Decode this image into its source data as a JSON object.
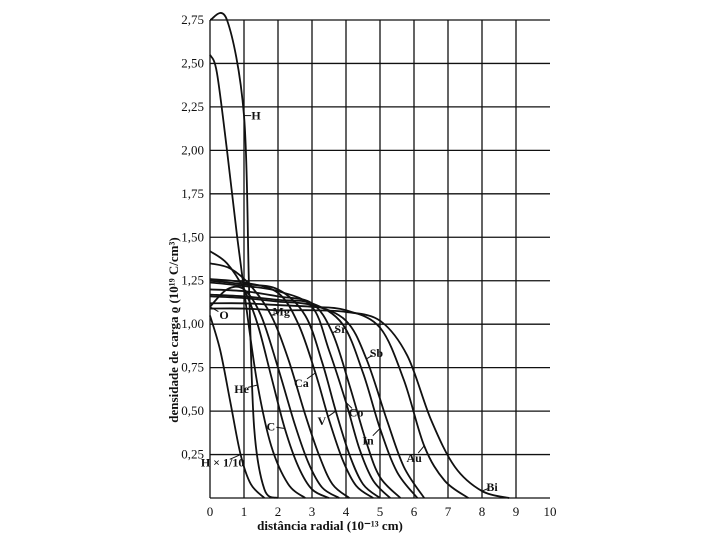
{
  "chart_data": {
    "type": "line",
    "title": "",
    "xlabel": "distância radial (10⁻¹³ cm)",
    "ylabel": "densidade de carga ϱ (10¹⁹ C/cm³)",
    "xlim": [
      0,
      10
    ],
    "ylim": [
      0,
      2.75
    ],
    "grid": true,
    "x_ticks": [
      "0",
      "1",
      "2",
      "3",
      "4",
      "5",
      "6",
      "7",
      "8",
      "9",
      "10"
    ],
    "y_ticks": [
      "0,25",
      "0,50",
      "0,75",
      "1,00",
      "1,25",
      "1,50",
      "1,75",
      "2,00",
      "2,25",
      "2,50",
      "2,75"
    ],
    "series": [
      {
        "name": "H",
        "x": [
          0,
          0.5,
          1.0,
          1.15,
          1.3,
          1.6,
          2.0
        ],
        "y": [
          2.75,
          2.75,
          2.2,
          1.2,
          0.4,
          0.05,
          0
        ]
      },
      {
        "name": "H × 1/10",
        "x": [
          0,
          0.3,
          0.6,
          0.9,
          1.2,
          1.6
        ],
        "y": [
          1.05,
          0.85,
          0.55,
          0.25,
          0.08,
          0
        ]
      },
      {
        "name": "He",
        "x": [
          0,
          0.2,
          0.5,
          0.8,
          1.1,
          1.4,
          1.8,
          2.3,
          2.8
        ],
        "y": [
          2.55,
          2.45,
          2.0,
          1.5,
          1.05,
          0.65,
          0.3,
          0.08,
          0
        ]
      },
      {
        "name": "C",
        "x": [
          0,
          0.5,
          1.0,
          1.4,
          1.8,
          2.2,
          2.6,
          3.0,
          3.5
        ],
        "y": [
          1.42,
          1.35,
          1.2,
          1.0,
          0.7,
          0.4,
          0.18,
          0.05,
          0
        ]
      },
      {
        "name": "O",
        "x": [
          0,
          0.5,
          1.0,
          1.5,
          2.0,
          2.5,
          2.9,
          3.3,
          3.8
        ],
        "y": [
          1.1,
          1.2,
          1.2,
          1.05,
          0.75,
          0.42,
          0.2,
          0.06,
          0
        ]
      },
      {
        "name": "Mg",
        "x": [
          0,
          0.6,
          1.2,
          1.8,
          2.3,
          2.8,
          3.2,
          3.6,
          4.1
        ],
        "y": [
          1.35,
          1.32,
          1.22,
          1.05,
          0.8,
          0.48,
          0.25,
          0.08,
          0
        ]
      },
      {
        "name": "Ca",
        "x": [
          0,
          1.0,
          2.0,
          2.6,
          3.1,
          3.5,
          3.9,
          4.3,
          4.8
        ],
        "y": [
          1.26,
          1.24,
          1.18,
          1.0,
          0.72,
          0.45,
          0.22,
          0.07,
          0
        ]
      },
      {
        "name": "V",
        "x": [
          0,
          1.0,
          2.0,
          2.8,
          3.3,
          3.7,
          4.1,
          4.5,
          5.0
        ],
        "y": [
          1.25,
          1.23,
          1.2,
          1.05,
          0.78,
          0.5,
          0.25,
          0.08,
          0
        ]
      },
      {
        "name": "Co",
        "x": [
          0,
          1.0,
          2.0,
          3.0,
          3.5,
          4.0,
          4.4,
          4.8,
          5.3
        ],
        "y": [
          1.24,
          1.22,
          1.19,
          1.1,
          0.85,
          0.55,
          0.28,
          0.1,
          0
        ]
      },
      {
        "name": "Sr",
        "x": [
          0,
          1.0,
          2.0,
          3.0,
          3.6,
          4.1,
          4.6,
          5.0,
          5.6
        ],
        "y": [
          1.2,
          1.19,
          1.16,
          1.12,
          0.95,
          0.65,
          0.32,
          0.12,
          0
        ]
      },
      {
        "name": "In",
        "x": [
          0,
          1.0,
          2.0,
          3.0,
          3.9,
          4.5,
          5.0,
          5.5,
          6.1
        ],
        "y": [
          1.17,
          1.16,
          1.14,
          1.12,
          1.0,
          0.72,
          0.4,
          0.15,
          0
        ]
      },
      {
        "name": "Sb",
        "x": [
          0,
          1.0,
          2.0,
          3.0,
          4.0,
          4.6,
          5.2,
          5.7,
          6.3
        ],
        "y": [
          1.16,
          1.15,
          1.13,
          1.11,
          1.02,
          0.8,
          0.45,
          0.18,
          0
        ]
      },
      {
        "name": "Au",
        "x": [
          0,
          1.0,
          2.0,
          3.0,
          4.0,
          5.0,
          5.7,
          6.3,
          6.9,
          7.6
        ],
        "y": [
          1.12,
          1.12,
          1.11,
          1.1,
          1.08,
          0.98,
          0.68,
          0.3,
          0.1,
          0
        ]
      },
      {
        "name": "Bi",
        "x": [
          0,
          1.0,
          2.0,
          3.0,
          4.0,
          5.0,
          5.8,
          6.5,
          7.2,
          8.0,
          8.8
        ],
        "y": [
          1.09,
          1.09,
          1.08,
          1.08,
          1.07,
          1.02,
          0.82,
          0.45,
          0.18,
          0.04,
          0
        ]
      }
    ]
  }
}
